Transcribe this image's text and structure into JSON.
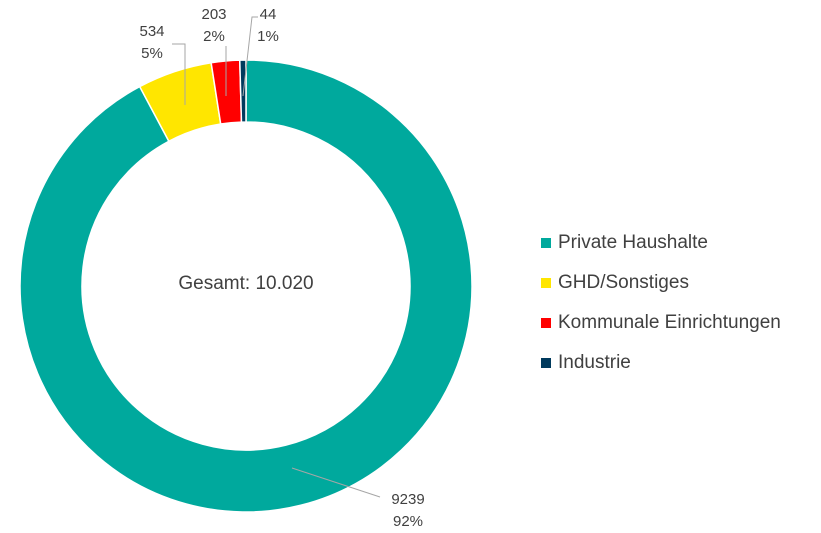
{
  "chart_data": {
    "type": "donut",
    "center_label": "Gesamt: 10.020",
    "categories": [
      "Private Haushalte",
      "GHD/Sonstiges",
      "Kommunale Einrichtungen",
      "Industrie"
    ],
    "values": [
      9239,
      534,
      203,
      44
    ],
    "percent_labels": [
      "92%",
      "5%",
      "2%",
      "1%"
    ],
    "colors": [
      "#00A99D",
      "#FFE600",
      "#FF0000",
      "#003A5D"
    ],
    "legend": "right"
  }
}
